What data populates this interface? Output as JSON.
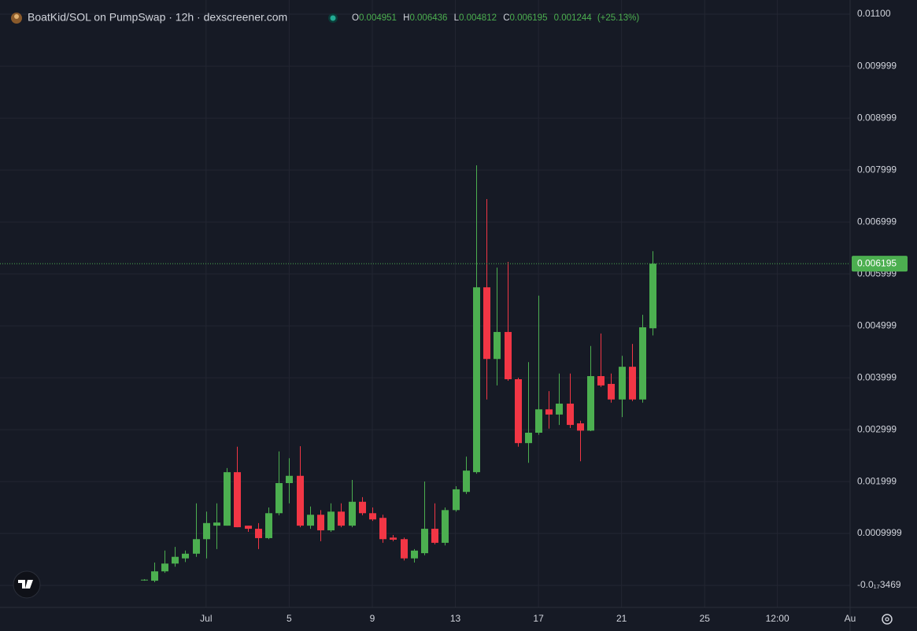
{
  "chart_data": {
    "type": "candlestick",
    "title": "BoatKid/SOL on PumpSwap · 12h · dexscreener.com",
    "ohlc_letters": [
      "O",
      "H",
      "L",
      "C"
    ],
    "change": 0.001244,
    "change_percent": "(+25.13%)",
    "up_color": "#4caf50",
    "down_color": "#f23645",
    "grid": true,
    "xlim": [
      -8.92,
      32
    ],
    "ylim": [
      -0.000424,
      0.011273
    ],
    "xticks": [
      {
        "value": 1,
        "label": "Jul"
      },
      5,
      9,
      13,
      17,
      21,
      25,
      {
        "value": 28.5,
        "label": "12:00"
      },
      {
        "value": 32,
        "label": "Au"
      }
    ],
    "yticks": [
      {
        "value": -3.469e-18,
        "label": "-0.0₁₇3469"
      },
      0.0009999,
      0.001999,
      0.002999,
      0.003999,
      0.004999,
      0.005999,
      0.006999,
      0.007999,
      0.008999,
      0.009999,
      {
        "value": 0.011,
        "label": "0.01100"
      }
    ],
    "x": [
      -2,
      -1.5,
      -1,
      -0.5,
      0,
      0.5,
      1,
      1.5,
      2,
      2.5,
      3,
      3.5,
      4,
      4.5,
      5,
      5.5,
      6,
      6.5,
      7,
      7.5,
      8,
      8.5,
      9,
      9.5,
      10,
      10.5,
      11,
      11.5,
      12,
      12.5,
      13,
      13.5,
      14,
      14.5,
      15,
      15.5,
      16,
      16.5,
      17,
      17.5,
      18,
      18.5,
      19,
      19.5,
      20,
      20.5,
      21,
      21.5,
      22,
      22.5
    ],
    "open": [
      0.0001,
      9e-05,
      0.00027,
      0.00042,
      0.00052,
      0.00061,
      0.00089,
      0.00115,
      0.00115,
      0.00218,
      0.00115,
      0.00109,
      0.00091,
      0.00139,
      0.00197,
      0.00211,
      0.00115,
      0.00136,
      0.00106,
      0.00142,
      0.00115,
      0.00161,
      0.00139,
      0.0013,
      0.00092,
      0.00089,
      0.00052,
      0.00062,
      0.00109,
      0.00082,
      0.00145,
      0.0018,
      0.00218,
      0.00574,
      0.00436,
      0.00488,
      0.00397,
      0.00274,
      0.00294,
      0.00339,
      0.00329,
      0.0035,
      0.00312,
      0.00298,
      0.00403,
      0.00388,
      0.00358,
      0.00421,
      0.00358,
      0.004951
    ],
    "high": [
      0.00012,
      0.00044,
      0.00067,
      0.00074,
      0.00067,
      0.00158,
      0.00142,
      0.00158,
      0.00226,
      0.00267,
      0.00115,
      0.0012,
      0.0015,
      0.00258,
      0.00245,
      0.00268,
      0.00152,
      0.00145,
      0.00158,
      0.00158,
      0.00203,
      0.0017,
      0.0015,
      0.00136,
      0.00097,
      0.00092,
      0.0007,
      0.002,
      0.00158,
      0.0015,
      0.00191,
      0.00248,
      0.00809,
      0.00744,
      0.00612,
      0.00623,
      0.004,
      0.0043,
      0.00558,
      0.00374,
      0.00408,
      0.00408,
      0.00317,
      0.00461,
      0.00485,
      0.00408,
      0.00442,
      0.00465,
      0.00521,
      0.006436
    ],
    "low": [
      9e-05,
      6e-05,
      0.00024,
      0.00036,
      0.00045,
      0.00055,
      0.00052,
      0.0007,
      0.00115,
      0.00112,
      0.00103,
      0.0007,
      0.00089,
      0.00135,
      0.00158,
      0.00112,
      0.00109,
      0.00085,
      0.00103,
      0.00112,
      0.00112,
      0.00135,
      0.00124,
      0.00082,
      0.00085,
      0.00048,
      0.00044,
      0.00058,
      0.00079,
      0.00077,
      0.00142,
      0.00176,
      0.00215,
      0.00358,
      0.00385,
      0.00394,
      0.00267,
      0.00236,
      0.0029,
      0.00302,
      0.00309,
      0.00303,
      0.00239,
      0.00297,
      0.00382,
      0.00352,
      0.00324,
      0.00355,
      0.00352,
      0.004812
    ],
    "close": [
      0.00011,
      0.00027,
      0.00042,
      0.00055,
      0.00061,
      0.00089,
      0.0012,
      0.00121,
      0.00218,
      0.00112,
      0.00109,
      0.00091,
      0.00139,
      0.00197,
      0.00211,
      0.00115,
      0.00136,
      0.00106,
      0.00142,
      0.00115,
      0.00161,
      0.00139,
      0.00127,
      0.00089,
      0.00088,
      0.00052,
      0.00067,
      0.00109,
      0.00082,
      0.00145,
      0.00185,
      0.00221,
      0.00574,
      0.00436,
      0.00488,
      0.00397,
      0.00274,
      0.00294,
      0.00339,
      0.00329,
      0.0035,
      0.00309,
      0.00298,
      0.00403,
      0.00385,
      0.00358,
      0.00421,
      0.00358,
      0.00497,
      0.006195
    ]
  }
}
